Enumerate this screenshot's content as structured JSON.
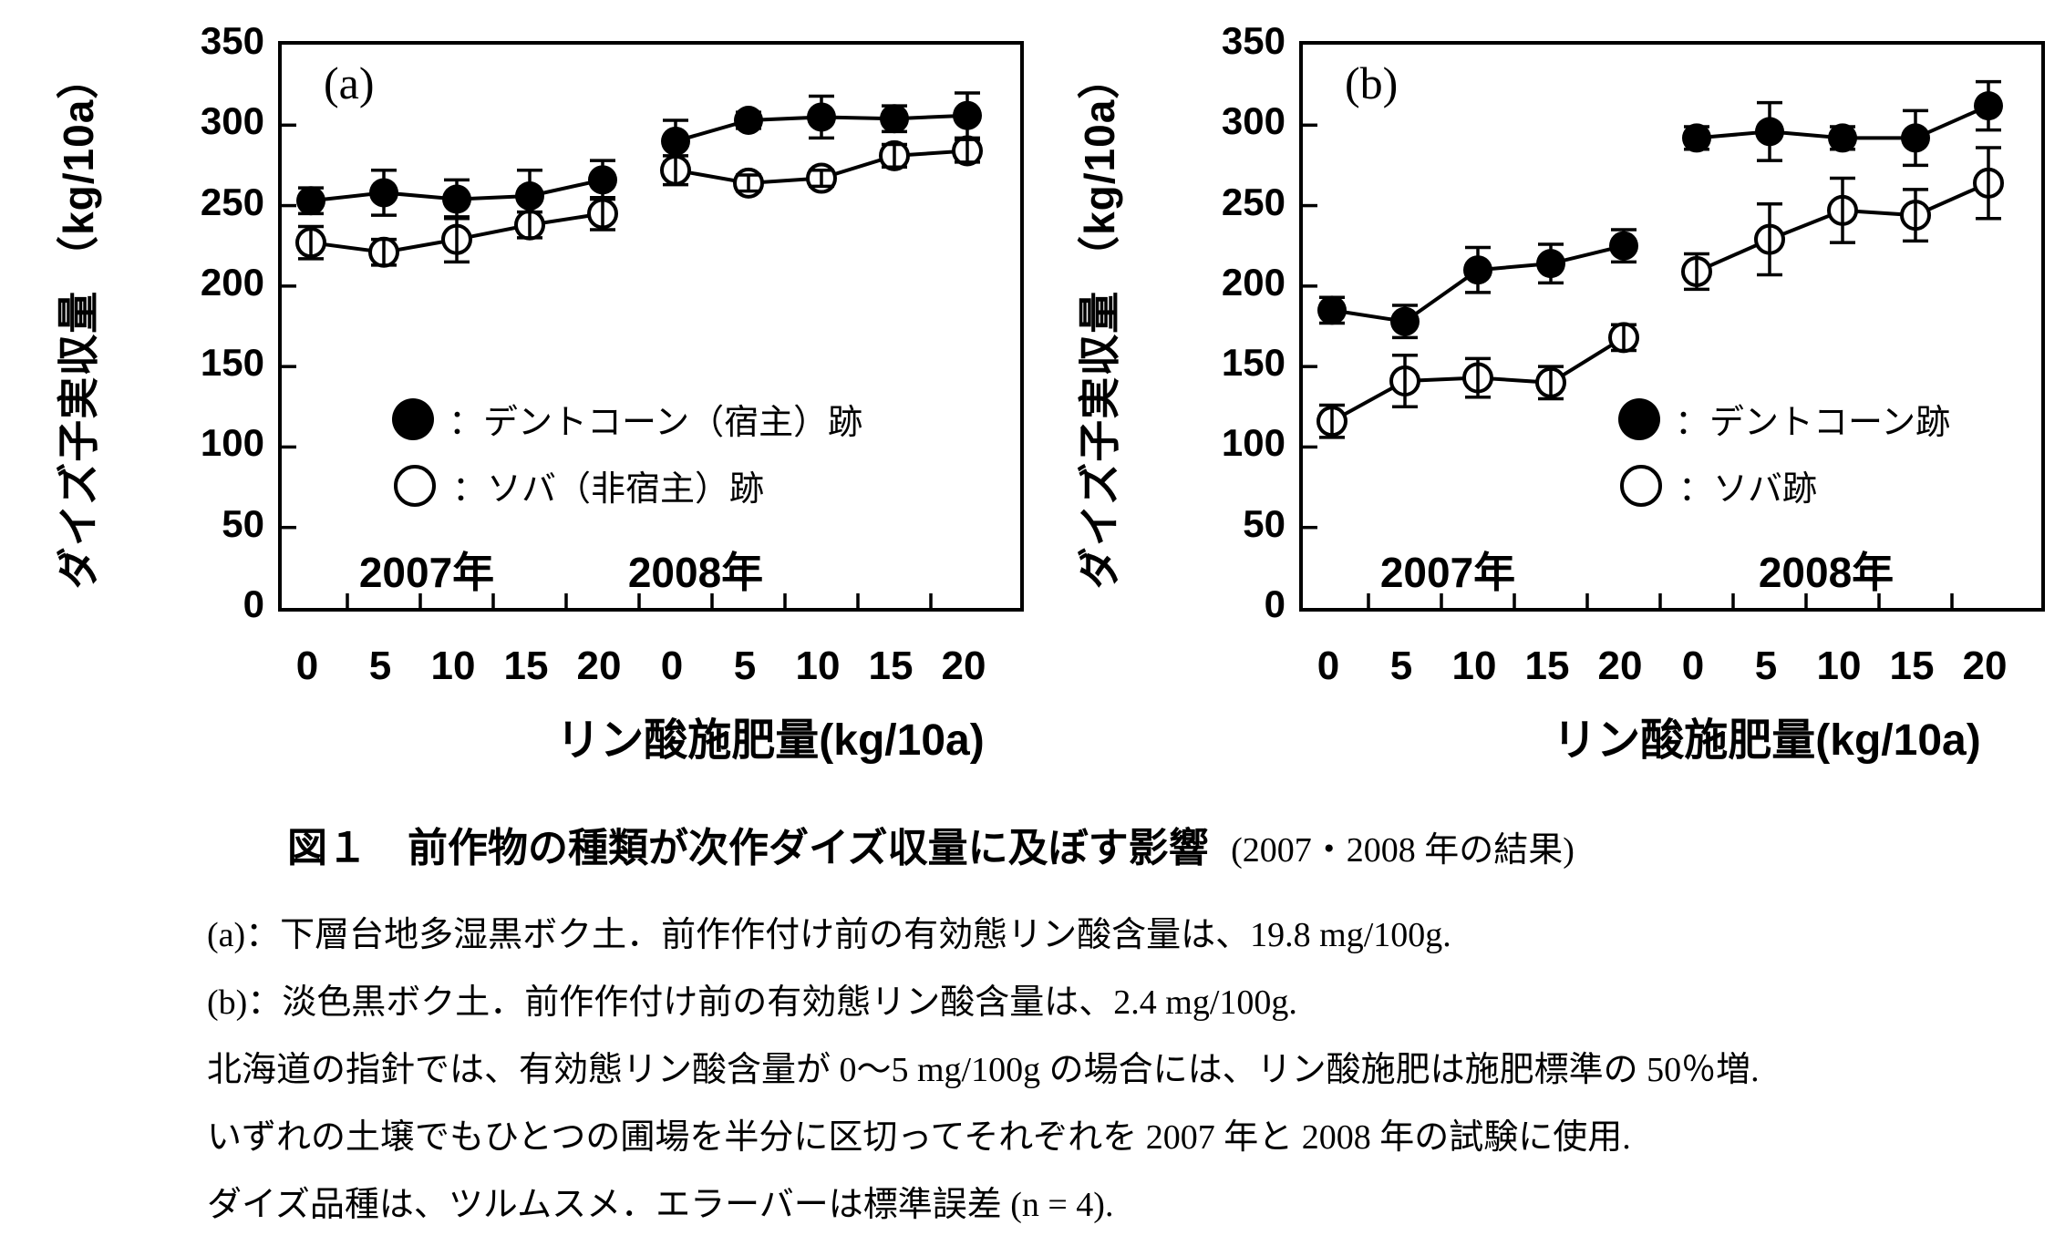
{
  "page": {
    "background": "#ffffff",
    "ink": "#000000"
  },
  "caption": {
    "title_bold": "図１　前作物の種類が次作ダイズ収量に及ぼす影響",
    "title_suffix": "(2007・2008 年の結果)"
  },
  "notes": [
    "(a)：下層台地多湿黒ボク土．前作作付け前の有効態リン酸含量は、19.8 mg/100g.",
    "(b)：淡色黒ボク土．前作作付け前の有効態リン酸含量は、2.4 mg/100g.",
    "北海道の指針では、有効態リン酸含量が 0〜5 mg/100g の場合には、リン酸施肥は施肥標準の 50％増.",
    "いずれの土壌でもひとつの圃場を半分に区切ってそれぞれを 2007 年と 2008 年の試験に使用.",
    "ダイズ品種は、ツルムスメ．エラーバーは標準誤差 (n = 4)."
  ],
  "chart_data": [
    {
      "type": "line",
      "panel_label": "(a)",
      "title": "",
      "ylabel": "ダイズ子実収量 （kg/10a）",
      "xlabel": "リン酸施肥量(kg/10a)",
      "ylim": [
        0,
        350
      ],
      "y_ticks": [
        0,
        50,
        100,
        150,
        200,
        250,
        300,
        350
      ],
      "x_tick_labels": [
        "0",
        "5",
        "10",
        "15",
        "20",
        "0",
        "5",
        "10",
        "15",
        "20"
      ],
      "year_labels": [
        "2007年",
        "2008年"
      ],
      "grid": false,
      "legend_position": "inside-lower-right",
      "legend": [
        {
          "marker": "filled-circle",
          "label": "：デントコーン（宿主）跡"
        },
        {
          "marker": "open-circle",
          "label": "：ソバ（非宿主）跡"
        }
      ],
      "series": [
        {
          "name": "デントコーン（宿主）跡 2007年",
          "marker": "filled",
          "start_index": 0,
          "x": [
            0,
            5,
            10,
            15,
            20
          ],
          "values": [
            253,
            258,
            254,
            256,
            266
          ],
          "errors": [
            8,
            14,
            12,
            16,
            12
          ]
        },
        {
          "name": "ソバ（非宿主）跡 2007年",
          "marker": "open",
          "start_index": 0,
          "x": [
            0,
            5,
            10,
            15,
            20
          ],
          "values": [
            227,
            221,
            229,
            238,
            245
          ],
          "errors": [
            10,
            8,
            14,
            8,
            10
          ]
        },
        {
          "name": "デントコーン（宿主）跡 2008年",
          "marker": "filled",
          "start_index": 5,
          "x": [
            0,
            5,
            10,
            15,
            20
          ],
          "values": [
            290,
            303,
            305,
            304,
            306
          ],
          "errors": [
            13,
            5,
            13,
            8,
            14
          ]
        },
        {
          "name": "ソバ（非宿主）跡 2008年",
          "marker": "open",
          "start_index": 5,
          "x": [
            0,
            5,
            10,
            15,
            20
          ],
          "values": [
            272,
            264,
            267,
            281,
            284
          ],
          "errors": [
            9,
            5,
            5,
            7,
            7
          ]
        }
      ]
    },
    {
      "type": "line",
      "panel_label": "(b)",
      "title": "",
      "ylabel": "ダイズ子実収量 （kg/10a）",
      "xlabel": "リン酸施肥量(kg/10a)",
      "ylim": [
        0,
        350
      ],
      "y_ticks": [
        0,
        50,
        100,
        150,
        200,
        250,
        300,
        350
      ],
      "x_tick_labels": [
        "0",
        "5",
        "10",
        "15",
        "20",
        "0",
        "5",
        "10",
        "15",
        "20"
      ],
      "year_labels": [
        "2007年",
        "2008年"
      ],
      "grid": false,
      "legend_position": "inside-lower-right",
      "legend": [
        {
          "marker": "filled-circle",
          "label": "：デントコーン跡"
        },
        {
          "marker": "open-circle",
          "label": "：ソバ跡"
        }
      ],
      "series": [
        {
          "name": "デントコーン跡 2007年",
          "marker": "filled",
          "start_index": 0,
          "x": [
            0,
            5,
            10,
            15,
            20
          ],
          "values": [
            185,
            178,
            210,
            214,
            225
          ],
          "errors": [
            8,
            10,
            14,
            12,
            10
          ]
        },
        {
          "name": "ソバ跡 2007年",
          "marker": "open",
          "start_index": 0,
          "x": [
            0,
            5,
            10,
            15,
            20
          ],
          "values": [
            116,
            141,
            143,
            140,
            168
          ],
          "errors": [
            10,
            16,
            12,
            10,
            8
          ]
        },
        {
          "name": "デントコーン跡 2008年",
          "marker": "filled",
          "start_index": 5,
          "x": [
            0,
            5,
            10,
            15,
            20
          ],
          "values": [
            292,
            296,
            292,
            292,
            312
          ],
          "errors": [
            7,
            18,
            7,
            17,
            15
          ]
        },
        {
          "name": "ソバ跡 2008年",
          "marker": "open",
          "start_index": 5,
          "x": [
            0,
            5,
            10,
            15,
            20
          ],
          "values": [
            209,
            229,
            247,
            244,
            264
          ],
          "errors": [
            11,
            22,
            20,
            16,
            22
          ]
        }
      ]
    }
  ]
}
